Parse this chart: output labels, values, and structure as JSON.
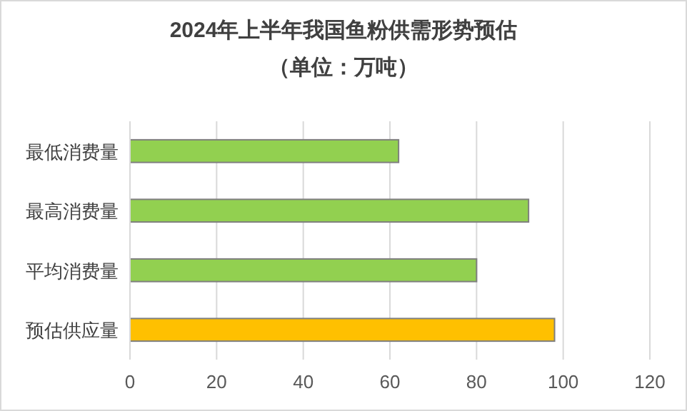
{
  "chart_data": {
    "type": "bar",
    "orientation": "horizontal",
    "title": "2024年上半年我国鱼粉供需形势预估",
    "subtitle": "（单位：万吨）",
    "categories": [
      "最低消费量",
      "最高消费量",
      "平均消费量",
      "预估供应量"
    ],
    "values": [
      62,
      92,
      80,
      98
    ],
    "colors": [
      "#92d050",
      "#92d050",
      "#92d050",
      "#ffc000"
    ],
    "xlim": [
      0,
      120
    ],
    "xticks": [
      0,
      20,
      40,
      60,
      80,
      100,
      120
    ],
    "grid": "x"
  }
}
